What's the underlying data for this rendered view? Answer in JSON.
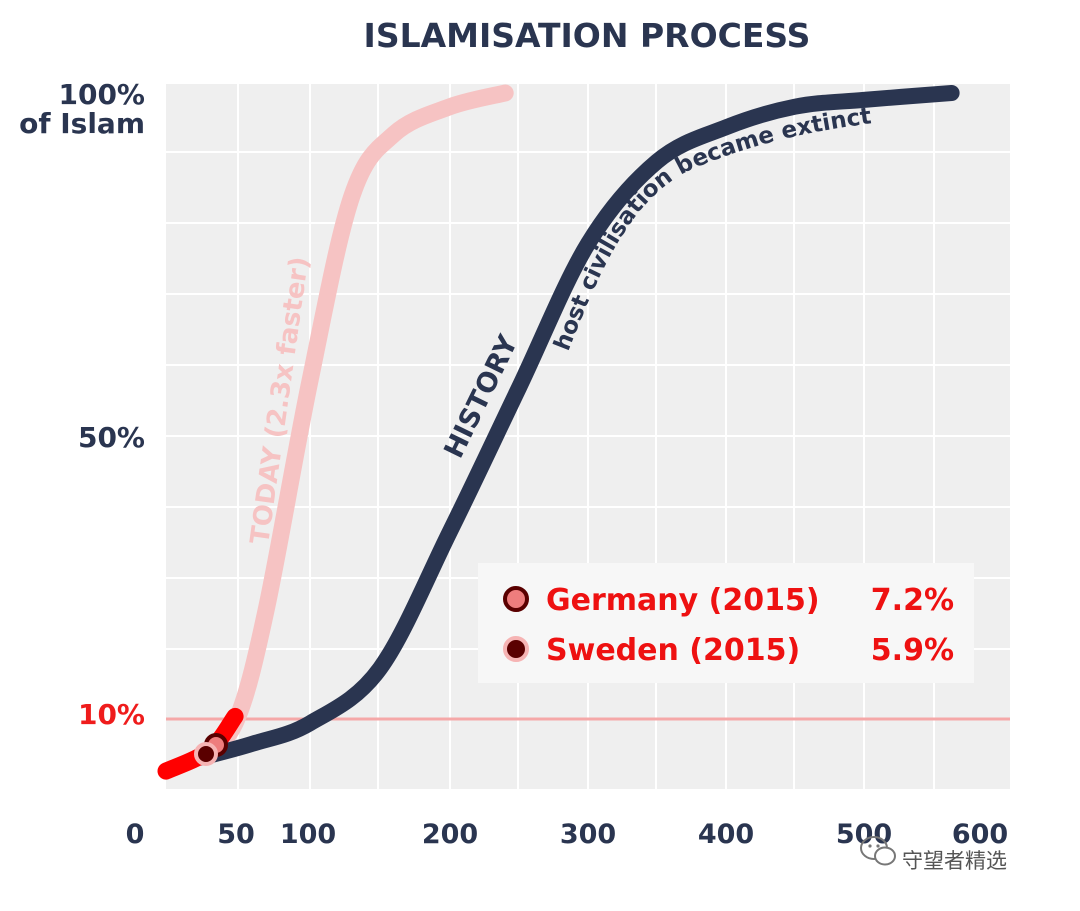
{
  "chart_data": {
    "type": "line",
    "title": "ISLAMISATION PROCESS",
    "xlabel": "",
    "ylabel": "",
    "xlim": [
      0,
      600
    ],
    "ylim": [
      0,
      100
    ],
    "x_ticks": [
      {
        "value": 0,
        "label": "0"
      },
      {
        "value": 50,
        "label": "50"
      },
      {
        "value": 100,
        "label": "100"
      },
      {
        "value": 200,
        "label": "200"
      },
      {
        "value": 300,
        "label": "300"
      },
      {
        "value": 400,
        "label": "400"
      },
      {
        "value": 500,
        "label": "500"
      },
      {
        "value": 600,
        "label": "600"
      }
    ],
    "y_ticks": [
      {
        "value": 100,
        "label_line1": "100%",
        "label_line2": "of Islam"
      },
      {
        "value": 50,
        "label": "50%"
      },
      {
        "value": 10,
        "label": "10%",
        "color": "#ef1c1c"
      }
    ],
    "reference_line": {
      "y": 10,
      "color": "#f5a8a8"
    },
    "series": [
      {
        "name": "HISTORY",
        "label": "HISTORY",
        "annotation": "host civilisation became extinct",
        "color": "#2a3550",
        "points": [
          [
            25,
            3
          ],
          [
            60,
            5
          ],
          [
            100,
            8
          ],
          [
            150,
            16
          ],
          [
            200,
            36
          ],
          [
            250,
            57
          ],
          [
            300,
            78
          ],
          [
            350,
            90
          ],
          [
            400,
            95
          ],
          [
            450,
            98
          ],
          [
            500,
            99
          ],
          [
            560,
            100
          ]
        ]
      },
      {
        "name": "TODAY",
        "label": "TODAY (2.3x faster)",
        "color": "#f6c3c3",
        "points": [
          [
            0,
            1
          ],
          [
            30,
            4
          ],
          [
            50,
            9
          ],
          [
            70,
            25
          ],
          [
            100,
            58
          ],
          [
            130,
            85
          ],
          [
            160,
            94
          ],
          [
            200,
            98
          ],
          [
            240,
            100
          ]
        ]
      },
      {
        "name": "TODAY (below 10%)",
        "color": "#ff0000",
        "points": [
          [
            0,
            1
          ],
          [
            30,
            4
          ],
          [
            48,
            9
          ]
        ]
      }
    ],
    "markers": [
      {
        "name": "Germany (2015)",
        "label": "Germany (2015)",
        "value_label": "7.2%",
        "x": 37,
        "y": 7.2,
        "fill": "#ee7d7d",
        "stroke": "#5a0000"
      },
      {
        "name": "Sweden (2015)",
        "label": "Sweden (2015)",
        "value_label": "5.9%",
        "x": 30,
        "y": 5.9,
        "fill": "#5a0000",
        "stroke": "#f6b4b4"
      }
    ],
    "legend": {
      "position": "bottom-right"
    },
    "grid": true
  },
  "watermark": {
    "text": "守望者精选"
  }
}
